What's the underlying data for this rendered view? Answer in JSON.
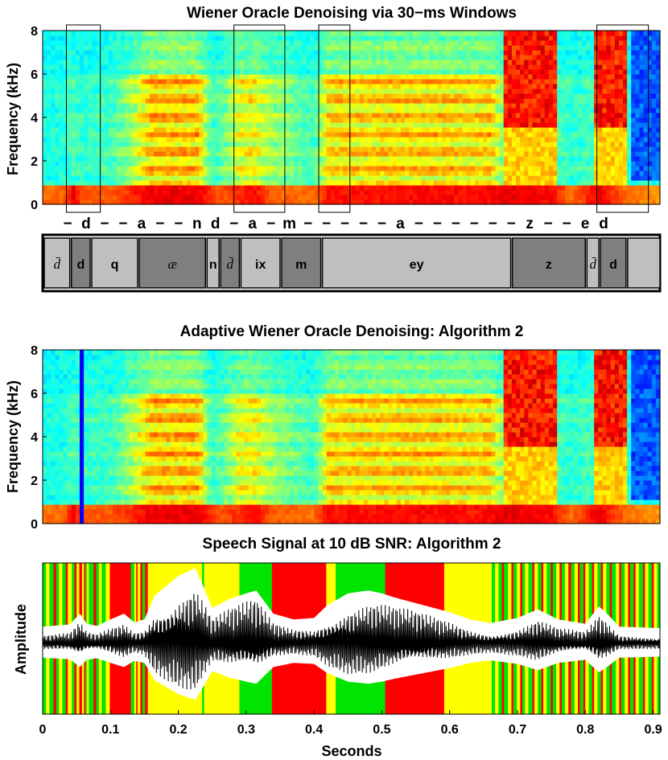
{
  "chart_data": [
    {
      "type": "heatmap",
      "title": "Wiener Oracle Denoising via 30−ms Windows",
      "ylabel": "Frequency (kHz)",
      "xlim": [
        0,
        0.91
      ],
      "ylim": [
        0,
        8
      ],
      "yticks": [
        "0",
        "2",
        "4",
        "6",
        "8"
      ],
      "highlight_windows_s": [
        [
          0.035,
          0.085
        ],
        [
          0.282,
          0.357
        ],
        [
          0.407,
          0.453
        ],
        [
          0.817,
          0.893
        ]
      ],
      "transcription": [
        "−",
        "d",
        "−",
        "−",
        "a",
        "−",
        "−",
        "n",
        "d",
        "−",
        "a",
        "−",
        "m",
        "−",
        "−",
        "−",
        "−",
        "−",
        "a",
        "−",
        "−",
        "−",
        "−",
        "−",
        "−",
        "z",
        "−",
        "−",
        "e",
        "d"
      ],
      "phonemes": [
        {
          "label": "d̄",
          "start": 0.0,
          "end": 0.04,
          "shade": "light",
          "italic": true
        },
        {
          "label": "d",
          "start": 0.04,
          "end": 0.07,
          "shade": "dark"
        },
        {
          "label": "q",
          "start": 0.07,
          "end": 0.14,
          "shade": "light"
        },
        {
          "label": "æ",
          "start": 0.14,
          "end": 0.24,
          "shade": "dark",
          "italic": true
        },
        {
          "label": "n",
          "start": 0.24,
          "end": 0.26,
          "shade": "light"
        },
        {
          "label": "d̄",
          "start": 0.26,
          "end": 0.29,
          "shade": "dark",
          "italic": true
        },
        {
          "label": "ix",
          "start": 0.29,
          "end": 0.35,
          "shade": "light"
        },
        {
          "label": "m",
          "start": 0.35,
          "end": 0.41,
          "shade": "dark"
        },
        {
          "label": "ey",
          "start": 0.41,
          "end": 0.69,
          "shade": "light"
        },
        {
          "label": "z",
          "start": 0.69,
          "end": 0.8,
          "shade": "dark"
        },
        {
          "label": "d̄",
          "start": 0.8,
          "end": 0.82,
          "shade": "light",
          "italic": true
        },
        {
          "label": "d",
          "start": 0.82,
          "end": 0.86,
          "shade": "dark"
        },
        {
          "label": "",
          "start": 0.86,
          "end": 0.91,
          "shade": "light"
        }
      ]
    },
    {
      "type": "heatmap",
      "title": "Adaptive Wiener Oracle Denoising: Algorithm 2",
      "ylabel": "Frequency (kHz)",
      "xlim": [
        0,
        0.91
      ],
      "ylim": [
        0,
        8
      ],
      "yticks": [
        "0",
        "2",
        "4",
        "6",
        "8"
      ]
    },
    {
      "type": "line",
      "title": "Speech Signal at 10 dB SNR: Algorithm 2",
      "xlabel": "Seconds",
      "ylabel": "Amplitude",
      "xlim": [
        0,
        0.91
      ],
      "xticks": [
        "0",
        "0.1",
        "0.2",
        "0.3",
        "0.4",
        "0.5",
        "0.6",
        "0.7",
        "0.8",
        "0.9"
      ],
      "series": [
        {
          "name": "waveform",
          "color": "#000000"
        },
        {
          "name": "envelope",
          "color": "#ffffff"
        }
      ],
      "window_colors": {
        "green": "#00e400",
        "yellow": "#ffff00",
        "red": "#ff0000"
      },
      "segments": [
        [
          "green",
          0.0,
          0.005
        ],
        [
          "yellow",
          0.005,
          0.01
        ],
        [
          "green",
          0.01,
          0.016
        ],
        [
          "red",
          0.016,
          0.02
        ],
        [
          "green",
          0.02,
          0.024
        ],
        [
          "yellow",
          0.024,
          0.029
        ],
        [
          "green",
          0.029,
          0.034
        ],
        [
          "red",
          0.034,
          0.037
        ],
        [
          "yellow",
          0.037,
          0.043
        ],
        [
          "green",
          0.043,
          0.047
        ],
        [
          "red",
          0.047,
          0.05
        ],
        [
          "yellow",
          0.05,
          0.054
        ],
        [
          "red",
          0.054,
          0.058
        ],
        [
          "yellow",
          0.058,
          0.061
        ],
        [
          "red",
          0.061,
          0.063
        ],
        [
          "green",
          0.063,
          0.065
        ],
        [
          "yellow",
          0.065,
          0.068
        ],
        [
          "green",
          0.068,
          0.075
        ],
        [
          "red",
          0.075,
          0.079
        ],
        [
          "green",
          0.079,
          0.083
        ],
        [
          "yellow",
          0.083,
          0.087
        ],
        [
          "green",
          0.087,
          0.093
        ],
        [
          "yellow",
          0.093,
          0.099
        ],
        [
          "red",
          0.099,
          0.13
        ],
        [
          "green",
          0.13,
          0.135
        ],
        [
          "yellow",
          0.135,
          0.138
        ],
        [
          "red",
          0.138,
          0.14
        ],
        [
          "yellow",
          0.14,
          0.144
        ],
        [
          "red",
          0.144,
          0.147
        ],
        [
          "green",
          0.147,
          0.151
        ],
        [
          "red",
          0.151,
          0.155
        ],
        [
          "yellow",
          0.155,
          0.235
        ],
        [
          "green",
          0.235,
          0.238
        ],
        [
          "yellow",
          0.238,
          0.29
        ],
        [
          "green",
          0.29,
          0.338
        ],
        [
          "red",
          0.338,
          0.418
        ],
        [
          "yellow",
          0.418,
          0.432
        ],
        [
          "green",
          0.432,
          0.505
        ],
        [
          "red",
          0.505,
          0.592
        ],
        [
          "yellow",
          0.592,
          0.662
        ],
        [
          "green",
          0.662,
          0.667
        ],
        [
          "yellow",
          0.667,
          0.672
        ],
        [
          "green",
          0.672,
          0.677
        ],
        [
          "red",
          0.677,
          0.68
        ],
        [
          "green",
          0.68,
          0.686
        ],
        [
          "yellow",
          0.686,
          0.691
        ],
        [
          "red",
          0.691,
          0.694
        ],
        [
          "green",
          0.694,
          0.699
        ],
        [
          "yellow",
          0.699,
          0.704
        ],
        [
          "red",
          0.704,
          0.707
        ],
        [
          "green",
          0.707,
          0.711
        ],
        [
          "yellow",
          0.711,
          0.716
        ],
        [
          "green",
          0.716,
          0.722
        ],
        [
          "red",
          0.722,
          0.725
        ],
        [
          "yellow",
          0.725,
          0.73
        ],
        [
          "green",
          0.73,
          0.735
        ],
        [
          "red",
          0.735,
          0.738
        ],
        [
          "yellow",
          0.738,
          0.743
        ],
        [
          "green",
          0.743,
          0.749
        ],
        [
          "red",
          0.749,
          0.752
        ],
        [
          "green",
          0.752,
          0.757
        ],
        [
          "yellow",
          0.757,
          0.762
        ],
        [
          "red",
          0.762,
          0.765
        ],
        [
          "green",
          0.765,
          0.77
        ],
        [
          "yellow",
          0.77,
          0.775
        ],
        [
          "red",
          0.775,
          0.779
        ],
        [
          "green",
          0.779,
          0.784
        ],
        [
          "yellow",
          0.784,
          0.789
        ],
        [
          "red",
          0.789,
          0.792
        ],
        [
          "green",
          0.792,
          0.797
        ],
        [
          "red",
          0.797,
          0.8
        ],
        [
          "yellow",
          0.8,
          0.805
        ],
        [
          "green",
          0.805,
          0.81
        ],
        [
          "red",
          0.81,
          0.813
        ],
        [
          "yellow",
          0.813,
          0.818
        ],
        [
          "green",
          0.818,
          0.823
        ],
        [
          "red",
          0.823,
          0.826
        ],
        [
          "yellow",
          0.826,
          0.831
        ],
        [
          "green",
          0.831,
          0.836
        ],
        [
          "red",
          0.836,
          0.839
        ],
        [
          "green",
          0.839,
          0.845
        ],
        [
          "yellow",
          0.845,
          0.85
        ],
        [
          "red",
          0.85,
          0.853
        ],
        [
          "green",
          0.853,
          0.858
        ],
        [
          "yellow",
          0.858,
          0.863
        ],
        [
          "red",
          0.863,
          0.866
        ],
        [
          "green",
          0.866,
          0.871
        ],
        [
          "red",
          0.871,
          0.874
        ],
        [
          "yellow",
          0.874,
          0.879
        ],
        [
          "green",
          0.879,
          0.885
        ],
        [
          "red",
          0.885,
          0.888
        ],
        [
          "yellow",
          0.888,
          0.893
        ],
        [
          "green",
          0.893,
          0.898
        ],
        [
          "red",
          0.898,
          0.901
        ],
        [
          "yellow",
          0.901,
          0.906
        ],
        [
          "green",
          0.906,
          0.91
        ]
      ],
      "amplitude_profile_s": [
        [
          0,
          0.12
        ],
        [
          0.04,
          0.15
        ],
        [
          0.055,
          0.3
        ],
        [
          0.065,
          0.16
        ],
        [
          0.08,
          0.13
        ],
        [
          0.1,
          0.22
        ],
        [
          0.12,
          0.3
        ],
        [
          0.135,
          0.18
        ],
        [
          0.15,
          0.22
        ],
        [
          0.165,
          0.55
        ],
        [
          0.2,
          0.82
        ],
        [
          0.225,
          0.93
        ],
        [
          0.238,
          0.65
        ],
        [
          0.25,
          0.38
        ],
        [
          0.275,
          0.5
        ],
        [
          0.3,
          0.58
        ],
        [
          0.315,
          0.62
        ],
        [
          0.34,
          0.3
        ],
        [
          0.37,
          0.22
        ],
        [
          0.4,
          0.24
        ],
        [
          0.42,
          0.42
        ],
        [
          0.45,
          0.58
        ],
        [
          0.48,
          0.62
        ],
        [
          0.5,
          0.58
        ],
        [
          0.52,
          0.52
        ],
        [
          0.56,
          0.42
        ],
        [
          0.6,
          0.32
        ],
        [
          0.63,
          0.22
        ],
        [
          0.66,
          0.17
        ],
        [
          0.7,
          0.24
        ],
        [
          0.73,
          0.36
        ],
        [
          0.76,
          0.22
        ],
        [
          0.8,
          0.16
        ],
        [
          0.82,
          0.4
        ],
        [
          0.83,
          0.32
        ],
        [
          0.85,
          0.12
        ],
        [
          0.91,
          0.1
        ]
      ]
    }
  ]
}
